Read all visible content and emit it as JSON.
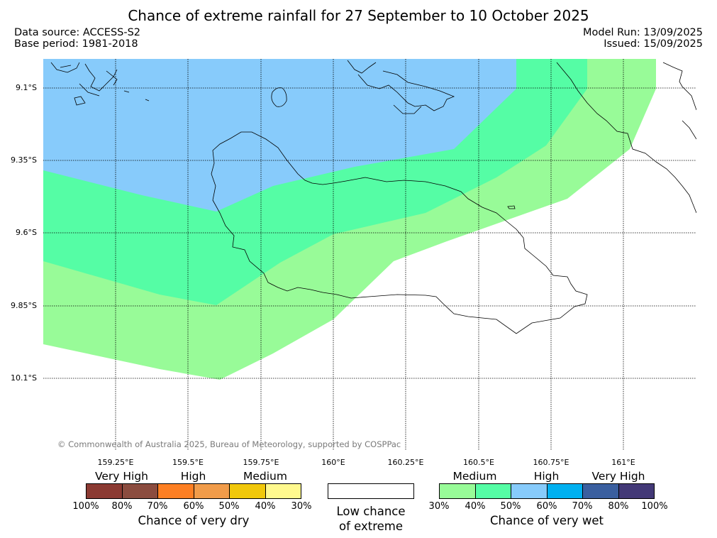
{
  "title": "Chance of extreme rainfall for 27 September to 10 October 2025",
  "data_source": "Data source: ACCESS-S2",
  "base_period": "Base period: 1981-2018",
  "model_run": "Model Run: 13/09/2025",
  "issued": "Issued: 15/09/2025",
  "credit": "© Commonwealth of Australia 2025, Bureau of Meteorology, supported by COSPPac",
  "lat_labels": [
    "9.1°S",
    "9.35°S",
    "9.6°S",
    "9.85°S",
    "10.1°S"
  ],
  "lon_labels": [
    "159.25°E",
    "159.5°E",
    "159.75°E",
    "160°E",
    "160.25°E",
    "160.5°E",
    "160.75°E",
    "161°E"
  ],
  "colors": {
    "wet_medium_30_40": "#98fb98",
    "wet_medium_40_50": "#55fda5",
    "wet_high_50_60": "#87cbfb",
    "wet_high_60_70": "#00b0f0",
    "wet_veryhigh_70_80": "#3a5f9f",
    "wet_veryhigh_80_100": "#433977",
    "dry_veryhigh_100_80": "#8b3a32",
    "dry_veryhigh_80_70": "#8b4c3f",
    "dry_high_70_60": "#fd7f23",
    "dry_high_60_50": "#f19c4a",
    "dry_medium_50_40": "#f1c80b",
    "dry_medium_40_30": "#fff98e"
  },
  "legend": {
    "dry": {
      "heads": [
        "Very High",
        "High",
        "Medium"
      ],
      "ticks": [
        "100%",
        "80%",
        "70%",
        "60%",
        "50%",
        "40%",
        "30%"
      ],
      "caption": "Chance of very dry"
    },
    "low": {
      "caption_line1": "Low chance",
      "caption_line2": "of extreme"
    },
    "wet": {
      "heads": [
        "Medium",
        "High",
        "Very High"
      ],
      "ticks": [
        "30%",
        "40%",
        "50%",
        "60%",
        "70%",
        "80%",
        "100%"
      ],
      "caption": "Chance of very wet"
    }
  }
}
